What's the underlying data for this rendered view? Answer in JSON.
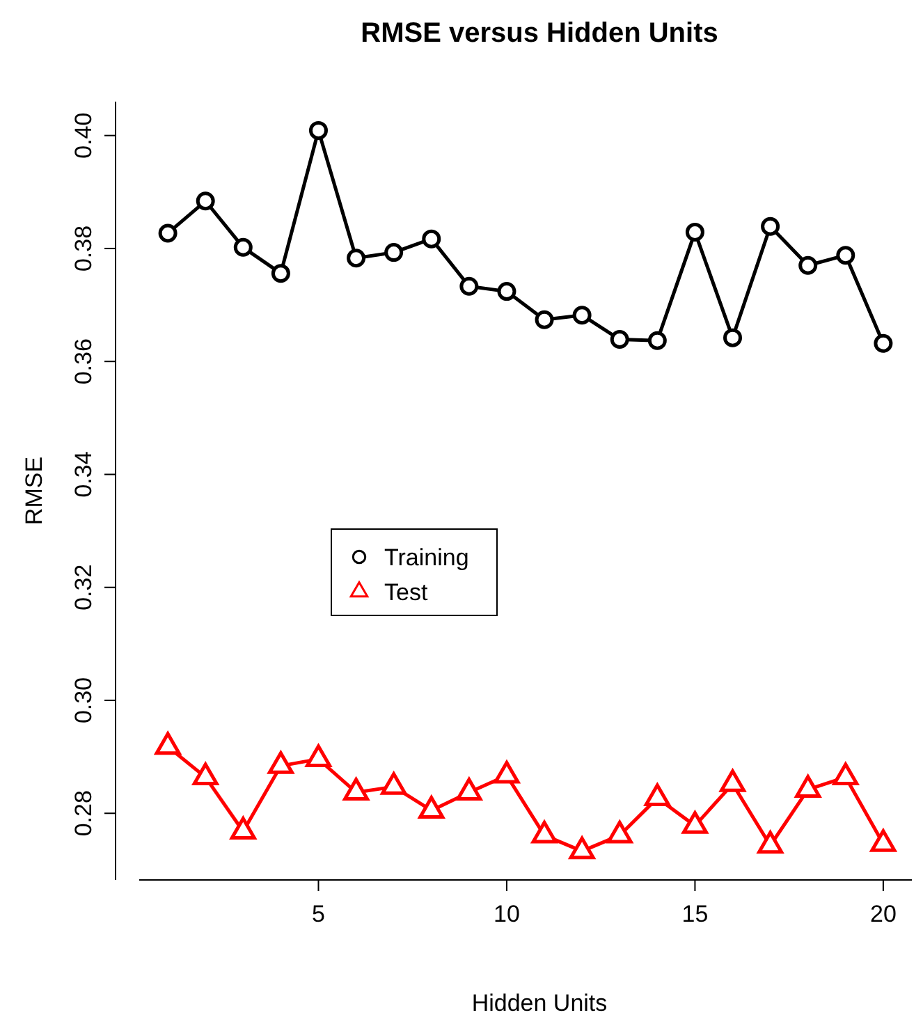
{
  "chart_data": {
    "type": "line",
    "title": "RMSE versus Hidden Units",
    "xlabel": "Hidden Units",
    "ylabel": "RMSE",
    "x": [
      1,
      2,
      3,
      4,
      5,
      6,
      7,
      8,
      9,
      10,
      11,
      12,
      13,
      14,
      15,
      16,
      17,
      18,
      19,
      20
    ],
    "series": [
      {
        "name": "Training",
        "color": "#000000",
        "marker": "circle",
        "values": [
          0.3827,
          0.3884,
          0.3802,
          0.3756,
          0.4009,
          0.3783,
          0.3793,
          0.3817,
          0.3733,
          0.3724,
          0.3674,
          0.3682,
          0.3639,
          0.3637,
          0.3829,
          0.3642,
          0.3839,
          0.377,
          0.3788,
          0.3632
        ]
      },
      {
        "name": "Test",
        "color": "#ff0000",
        "marker": "triangle",
        "values": [
          0.2918,
          0.2864,
          0.2768,
          0.2884,
          0.2896,
          0.2837,
          0.2847,
          0.2805,
          0.2837,
          0.2867,
          0.2761,
          0.2733,
          0.2761,
          0.2827,
          0.2778,
          0.2852,
          0.2743,
          0.2842,
          0.2864,
          0.2746
        ]
      }
    ],
    "xlim": [
      0.24,
      20.76
    ],
    "xticks": [
      5,
      10,
      15,
      20
    ],
    "ylim": [
      0.2682,
      0.406
    ],
    "yticks": [
      {
        "value": 0.28,
        "label": "0.28"
      },
      {
        "value": 0.3,
        "label": "0.30"
      },
      {
        "value": 0.32,
        "label": "0.32"
      },
      {
        "value": 0.34,
        "label": "0.34"
      },
      {
        "value": 0.36,
        "label": "0.36"
      },
      {
        "value": 0.38,
        "label": "0.38"
      },
      {
        "value": 0.4,
        "label": "0.40"
      }
    ],
    "grid": false,
    "legend": "left",
    "line_style": "solid"
  }
}
